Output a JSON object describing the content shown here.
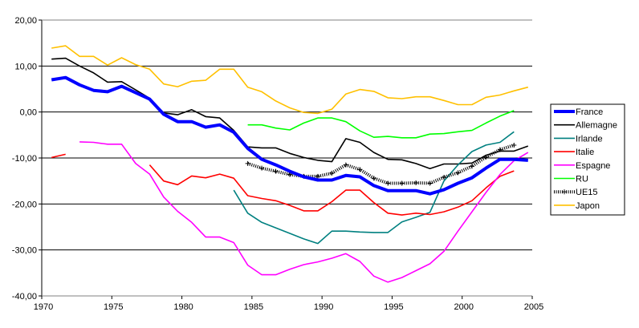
{
  "chart_data": {
    "type": "line",
    "title": "",
    "xlabel": "",
    "ylabel": "",
    "ylim": [
      -40,
      20
    ],
    "yticks": [
      20,
      10,
      0,
      -10,
      -20,
      -30,
      -40
    ],
    "ytick_labels": [
      "20,00",
      "10,00",
      "0,00",
      "-10,00",
      "-20,00",
      "-30,00",
      "-40,00"
    ],
    "xlim": [
      1970,
      2005
    ],
    "xticks": [
      1970,
      1975,
      1980,
      1985,
      1990,
      1995,
      2000,
      2005
    ],
    "xtick_labels": [
      "1970",
      "1975",
      "1980",
      "1985",
      "1990",
      "1995",
      "2000",
      "2005"
    ],
    "grid": "horizontal",
    "legend_position": "right",
    "series": [
      {
        "name": "France",
        "color": "#0000FF",
        "width": 4,
        "start": 1970,
        "values": [
          7.0,
          7.5,
          5.9,
          4.7,
          4.4,
          5.6,
          4.2,
          2.8,
          -0.5,
          -2.1,
          -2.1,
          -3.3,
          -2.8,
          -4.4,
          -7.9,
          -10.3,
          -11.5,
          -12.9,
          -14.1,
          -14.8,
          -14.8,
          -13.8,
          -14.1,
          -16.0,
          -17.1,
          -17.1,
          -17.1,
          -17.8,
          -16.9,
          -15.5,
          -14.3,
          -12.2,
          -10.3,
          -10.3,
          -10.5
        ]
      },
      {
        "name": "Allemagne",
        "color": "#000000",
        "width": 1.6,
        "start": 1970,
        "values": [
          11.5,
          11.7,
          10.0,
          8.5,
          6.5,
          6.6,
          4.8,
          3.0,
          -0.2,
          -0.6,
          0.5,
          -1.0,
          -1.3,
          -4.0,
          -7.6,
          -7.8,
          -7.8,
          -9.0,
          -9.9,
          -10.5,
          -10.8,
          -5.8,
          -6.6,
          -8.8,
          -10.3,
          -10.4,
          -11.2,
          -12.3,
          -11.3,
          -11.3,
          -11.1,
          -9.4,
          -8.5,
          -8.5,
          -7.4
        ]
      },
      {
        "name": "Irlande",
        "color": "#008080",
        "width": 1.6,
        "start": 1983,
        "values": [
          -17.0,
          -22.0,
          -24.0,
          -25.2,
          -26.4,
          -27.6,
          -28.6,
          -25.9,
          -25.9,
          -26.1,
          -26.2,
          -26.2,
          -23.9,
          -22.9,
          -21.8,
          -15.0,
          -11.5,
          -8.6,
          -7.2,
          -6.6,
          -4.3
        ]
      },
      {
        "name": "Italie",
        "color": "#FF0000",
        "width": 1.6,
        "start": 1970,
        "values": [
          -9.9,
          -9.2,
          null,
          null,
          null,
          null,
          null,
          -11.5,
          -15.0,
          -15.8,
          -13.9,
          -14.3,
          -13.5,
          -14.4,
          -18.2,
          -18.8,
          -19.3,
          -20.3,
          -21.5,
          -21.5,
          -19.5,
          -17.0,
          -17.0,
          -19.7,
          -22.0,
          -22.4,
          -22.0,
          -22.3,
          -21.7,
          -20.7,
          -19.3,
          -16.5,
          -14.0,
          -12.8
        ]
      },
      {
        "name": "Espagne",
        "color": "#FF00FF",
        "width": 1.6,
        "start": 1972,
        "values": [
          -6.5,
          -6.6,
          -7.0,
          -7.0,
          -11.2,
          -13.5,
          -18.5,
          -21.6,
          -24.0,
          -27.2,
          -27.2,
          -28.4,
          -33.3,
          -35.4,
          -35.4,
          -34.2,
          -33.2,
          -32.6,
          -31.8,
          -30.8,
          -32.5,
          -35.7,
          -37.0,
          -36.0,
          -34.5,
          -33.0,
          -30.3,
          -25.9,
          -21.7,
          -17.5,
          -13.6,
          -10.6,
          -8.8
        ]
      },
      {
        "name": "RU",
        "color": "#00FF00",
        "width": 1.6,
        "start": 1984,
        "values": [
          -2.8,
          -2.8,
          -3.5,
          -3.9,
          -2.4,
          -1.3,
          -1.3,
          -2.1,
          -4.1,
          -5.5,
          -5.3,
          -5.6,
          -5.6,
          -4.8,
          -4.7,
          -4.3,
          -4.0,
          -2.4,
          -0.9,
          0.3
        ]
      },
      {
        "name": "UE15",
        "color": "#000000",
        "width": 1,
        "dotted": true,
        "start": 1984,
        "values": [
          -11.2,
          -12.2,
          -12.9,
          -13.6,
          -14.0,
          -14.0,
          -13.3,
          -11.5,
          -12.5,
          -14.4,
          -15.5,
          -15.5,
          -15.4,
          -15.5,
          -14.2,
          -13.2,
          -11.8,
          -9.8,
          -8.2,
          -7.2
        ]
      },
      {
        "name": "Japon",
        "color": "#FFC000",
        "width": 1.6,
        "start": 1970,
        "values": [
          13.9,
          14.4,
          12.1,
          12.1,
          10.2,
          11.8,
          10.3,
          9.3,
          6.1,
          5.5,
          6.7,
          6.9,
          9.3,
          9.3,
          5.4,
          4.4,
          2.4,
          0.9,
          -0.1,
          -0.3,
          0.6,
          3.9,
          4.9,
          4.5,
          3.1,
          2.9,
          3.3,
          3.3,
          2.5,
          1.6,
          1.6,
          3.2,
          3.7,
          4.6,
          5.4
        ]
      }
    ]
  }
}
